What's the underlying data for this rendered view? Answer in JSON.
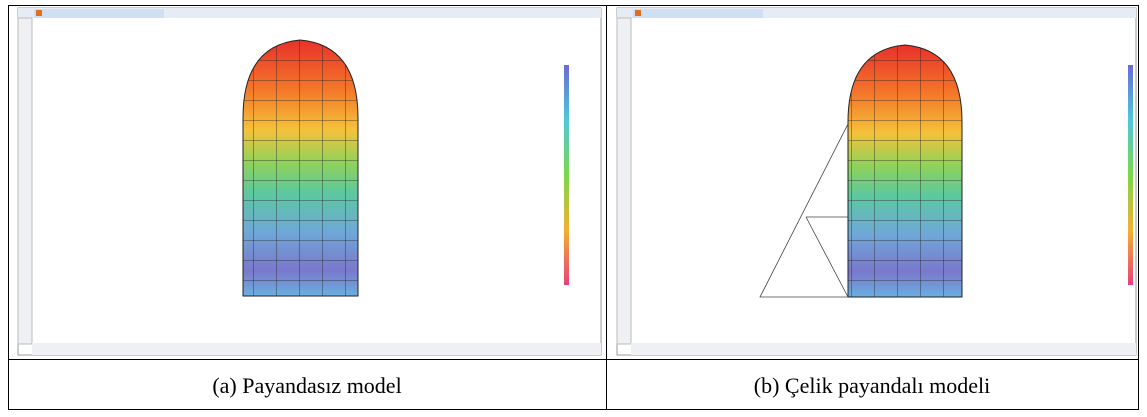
{
  "figure": {
    "captions": [
      "(a) Payandasız model",
      "(b) Çelik payandalı modeli"
    ]
  }
}
